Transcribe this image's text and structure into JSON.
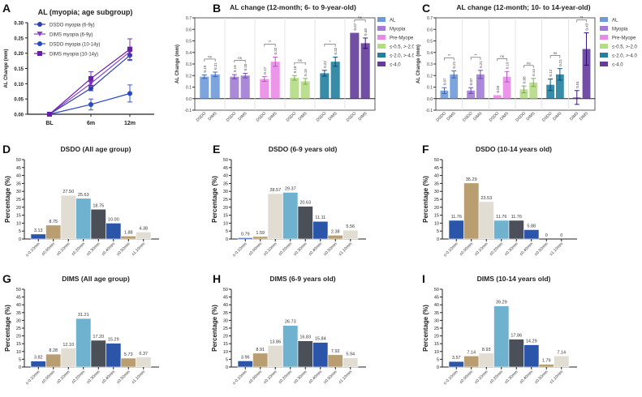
{
  "chart_data": [
    {
      "panel": "A",
      "type": "line",
      "title": "AL (myopia; age subgroup)",
      "xlabel": "",
      "ylabel": "AL Change (mm)",
      "categories": [
        "BL",
        "6m",
        "12m"
      ],
      "ylim": [
        0,
        0.3
      ],
      "yticks": [
        "0.00",
        "0.05",
        "0.10",
        "0.15",
        "0.20",
        "0.25",
        "0.30"
      ],
      "legend_position": "top-left",
      "series": [
        {
          "name": "DSDO myopia (6-9y)",
          "color": "#2b3fb0",
          "marker": "circle",
          "values": [
            0,
            0.085,
            0.193
          ],
          "err": [
            0.004,
            0.008,
            0.017
          ]
        },
        {
          "name": "DIMS myopia (6-9y)",
          "color": "#8a3fd0",
          "marker": "triangle-down",
          "values": [
            0,
            0.101,
            0.205
          ],
          "err": [
            0.004,
            0.01,
            0.015
          ]
        },
        {
          "name": "DSDO myopia (10-14y)",
          "color": "#2848c8",
          "marker": "circle",
          "values": [
            0,
            0.032,
            0.068
          ],
          "err": [
            0.004,
            0.018,
            0.028
          ]
        },
        {
          "name": "DIMS myopia (10-14y)",
          "color": "#6a1fa8",
          "marker": "square",
          "values": [
            0,
            0.117,
            0.213
          ],
          "err": [
            0.004,
            0.022,
            0.034
          ]
        }
      ]
    },
    {
      "panel": "B",
      "type": "bar",
      "title": "AL change (12-month; 6- to 9-year-old)",
      "ylabel": "AL Change (mm)",
      "ylim": [
        -0.1,
        0.7
      ],
      "yticks": [
        "-0.1",
        "0.0",
        "0.1",
        "0.2",
        "0.3",
        "0.4",
        "0.5",
        "0.6",
        "0.7"
      ],
      "legend_position": "right",
      "groups": [
        {
          "name": "AL",
          "color": "#6f9ad8",
          "labels": [
            "DSDO",
            "DIMS"
          ],
          "values": [
            0.19,
            0.21
          ],
          "err": [
            0.015,
            0.02
          ],
          "value_labels": [
            "0.19",
            "0.21"
          ],
          "sig": "ns"
        },
        {
          "name": "Myopia",
          "color": "#a07cd4",
          "labels": [
            "DSDO",
            "DIMS"
          ],
          "values": [
            0.19,
            0.2
          ],
          "err": [
            0.018,
            0.02
          ],
          "value_labels": [
            "0.19",
            "0.20"
          ],
          "sig": "ns"
        },
        {
          "name": "Pre-Myope",
          "color": "#e98be6",
          "labels": [
            "DSDO",
            "DIMS"
          ],
          "values": [
            0.17,
            0.32
          ],
          "err": [
            0.02,
            0.04
          ],
          "value_labels": [
            "0.17",
            "0.32"
          ],
          "sig": "**"
        },
        {
          "name": "≤-0.5, >-2.0",
          "color": "#b4dc82",
          "labels": [
            "DSDO",
            "DIMS"
          ],
          "values": [
            0.18,
            0.15
          ],
          "err": [
            0.02,
            0.025
          ],
          "value_labels": [
            "0.18",
            "0.15"
          ],
          "sig": "ns"
        },
        {
          "name": "≤-2.0, >-4.0",
          "color": "#22809f",
          "labels": [
            "DSDO",
            "DIMS"
          ],
          "values": [
            0.22,
            0.32
          ],
          "err": [
            0.025,
            0.04
          ],
          "value_labels": [
            "0.22",
            "0.32"
          ],
          "sig": "*"
        },
        {
          "name": "≤-4.0",
          "color": "#643c9a",
          "labels": [
            "DSDO",
            "DIMS"
          ],
          "values": [
            0.57,
            0.48
          ],
          "err": [
            0.0,
            0.045
          ],
          "value_labels": [
            "0.57",
            "0.48"
          ],
          "sig": "ns"
        }
      ]
    },
    {
      "panel": "C",
      "type": "bar",
      "title": "AL change (12-month; 10- to 14-year-old)",
      "ylabel": "AL Change (mm)",
      "ylim": [
        -0.1,
        0.7
      ],
      "yticks": [
        "-0.1",
        "0.0",
        "0.1",
        "0.2",
        "0.3",
        "0.4",
        "0.5",
        "0.6",
        "0.7"
      ],
      "legend_position": "right",
      "groups": [
        {
          "name": "AL",
          "color": "#6f9ad8",
          "labels": [
            "DSDO",
            "DIMS"
          ],
          "values": [
            0.07,
            0.21
          ],
          "err": [
            0.025,
            0.03
          ],
          "value_labels": [
            "0.07",
            "0.21"
          ],
          "sig": "**"
        },
        {
          "name": "Myopia",
          "color": "#a07cd4",
          "labels": [
            "DSDO",
            "DIMS"
          ],
          "values": [
            0.07,
            0.21
          ],
          "err": [
            0.025,
            0.035
          ],
          "value_labels": [
            "0.07",
            "0.21"
          ],
          "sig": "**"
        },
        {
          "name": "Pre-Myope",
          "color": "#e98be6",
          "labels": [
            "DSDO",
            "DIMS"
          ],
          "values": [
            0.03,
            0.19
          ],
          "err": [
            0.0,
            0.045
          ],
          "value_labels": [
            "0.03",
            "0.19"
          ],
          "sig": "ns"
        },
        {
          "name": "≤-0.5, >-2.0",
          "color": "#b4dc82",
          "labels": [
            "DSDO",
            "DIMS"
          ],
          "values": [
            0.08,
            0.14
          ],
          "err": [
            0.03,
            0.035
          ],
          "value_labels": [
            "0.08",
            "0.14"
          ],
          "sig": "ns"
        },
        {
          "name": "≤-2.0, >-4.0",
          "color": "#22809f",
          "labels": [
            "DSDO",
            "DIMS"
          ],
          "values": [
            0.12,
            0.21
          ],
          "err": [
            0.05,
            0.05
          ],
          "value_labels": [
            "0.12",
            "0.21"
          ],
          "sig": "ns"
        },
        {
          "name": "≤-4.0",
          "color": "#643c9a",
          "labels": [
            "DIMS",
            "DIMS"
          ],
          "values": [
            0.01,
            0.43
          ],
          "err": [
            0.06,
            0.14
          ],
          "value_labels": [
            "0.01",
            "0.43"
          ],
          "sig": "**"
        }
      ]
    },
    {
      "panel": "D",
      "type": "bar",
      "title": "DSDO (All age group)",
      "ylabel": "Percentage (%)",
      "ylim": [
        0,
        50
      ],
      "categories": [
        "≤-0.10mm",
        "≤0.00mm",
        "≤0.10mm",
        "≤0.20mm",
        "≤0.30mm",
        "≤0.40mm",
        "≤0.50mm",
        "≤1.10mm"
      ],
      "values": [
        3.13,
        8.75,
        27.5,
        25.63,
        18.75,
        10.0,
        1.88,
        4.38
      ],
      "value_labels": [
        "3.13",
        "8.75",
        "27.50",
        "25.63",
        "18.75",
        "10.00",
        "1.88",
        "4.38"
      ]
    },
    {
      "panel": "E",
      "type": "bar",
      "title": "DSDO (6-9 years old)",
      "ylabel": "Percentage (%)",
      "ylim": [
        0,
        50
      ],
      "categories": [
        "≤-0.10mm",
        "≤0.00mm",
        "≤0.10mm",
        "≤0.20mm",
        "≤0.30mm",
        "≤0.40mm",
        "≤0.50mm",
        "≤1.10mm"
      ],
      "values": [
        0.79,
        1.59,
        28.57,
        29.37,
        20.63,
        11.11,
        2.38,
        5.56
      ],
      "value_labels": [
        "0.79",
        "1.59",
        "28.57",
        "29.37",
        "20.63",
        "11.11",
        "2.38",
        "5.56"
      ]
    },
    {
      "panel": "F",
      "type": "bar",
      "title": "DSDO (10-14 years old)",
      "ylabel": "Percentage (%)",
      "ylim": [
        0,
        50
      ],
      "categories": [
        "≤-0.10mm",
        "≤0.00mm",
        "≤0.10mm",
        "≤0.20mm",
        "≤0.30mm",
        "≤0.40mm",
        "≤0.50mm",
        "≤1.10mm"
      ],
      "values": [
        11.76,
        35.29,
        23.53,
        11.76,
        11.76,
        5.88,
        0,
        0
      ],
      "value_labels": [
        "11.76",
        "35.29",
        "23.53",
        "11.76",
        "11.76",
        "5.88",
        "0",
        "0"
      ]
    },
    {
      "panel": "G",
      "type": "bar",
      "title": "DIMS (All age group)",
      "ylabel": "Percentage (%)",
      "ylim": [
        0,
        50
      ],
      "categories": [
        "≤-0.10mm",
        "≤0.00mm",
        "≤0.10mm",
        "≤0.20mm",
        "≤0.30mm",
        "≤0.40mm",
        "≤0.50mm",
        "≤1.10mm"
      ],
      "values": [
        3.82,
        8.28,
        12.1,
        31.21,
        17.2,
        15.29,
        5.73,
        6.37
      ],
      "value_labels": [
        "3.82",
        "8.28",
        "12.10",
        "31.21",
        "17.20",
        "15.29",
        "5.73",
        "6.37"
      ]
    },
    {
      "panel": "H",
      "type": "bar",
      "title": "DIMS (6-9 years old)",
      "ylabel": "Percentage (%)",
      "ylim": [
        0,
        50
      ],
      "categories": [
        "≤-0.10mm",
        "≤0.00mm",
        "≤0.10mm",
        "≤0.20mm",
        "≤0.30mm",
        "≤0.40mm",
        "≤0.50mm",
        "≤1.10mm"
      ],
      "values": [
        3.96,
        8.91,
        13.86,
        26.73,
        16.83,
        15.84,
        7.92,
        5.94
      ],
      "value_labels": [
        "3.96",
        "8.91",
        "13.86",
        "26.73",
        "16.83",
        "15.84",
        "7.92",
        "5.94"
      ]
    },
    {
      "panel": "I",
      "type": "bar",
      "title": "DIMS (10-14 years old)",
      "ylabel": "Percentage (%)",
      "ylim": [
        0,
        50
      ],
      "categories": [
        "≤-0.10mm",
        "≤0.00mm",
        "≤0.10mm",
        "≤0.20mm",
        "≤0.30mm",
        "≤0.40mm",
        "≤0.50mm",
        "≤1.10mm"
      ],
      "values": [
        3.57,
        7.14,
        8.93,
        39.29,
        17.86,
        14.29,
        1.79,
        7.14
      ],
      "value_labels": [
        "3.57",
        "7.14",
        "8.93",
        "39.29",
        "17.86",
        "14.29",
        "1.79",
        "7.14"
      ]
    }
  ],
  "histogram_colors": [
    "#2b55a8",
    "#b89e70",
    "#e2ddd2",
    "#6fb2cf",
    "#4b4f57",
    "#2b55a8",
    "#b89e70",
    "#e2ddd2"
  ],
  "hist_yticks": [
    "0",
    "5",
    "10",
    "15",
    "20",
    "25",
    "30",
    "35",
    "40",
    "45",
    "50"
  ],
  "panel_letters": [
    "A",
    "B",
    "C",
    "D",
    "E",
    "F",
    "G",
    "H",
    "I"
  ]
}
